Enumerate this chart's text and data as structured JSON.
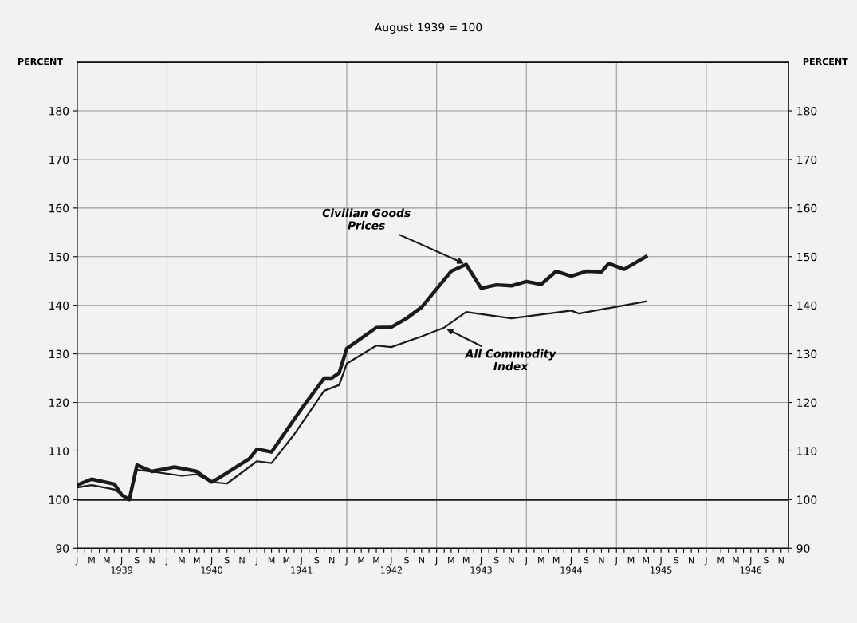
{
  "chart_data": {
    "type": "line",
    "subtitle": "August 1939 = 100",
    "ylabel": "PERCENT",
    "y2label": "PERCENT",
    "series": [
      {
        "color": "#1a1a1a",
        "x": [
          "1939-01",
          "1939-03",
          "1939-06",
          "1939-07",
          "1939-08",
          "1939-09",
          "1939-11",
          "1940-02",
          "1940-05",
          "1940-07",
          "1940-08",
          "1940-12",
          "1941-01",
          "1941-03",
          "1941-07",
          "1941-10",
          "1941-11",
          "1941-12",
          "1942-01",
          "1942-05",
          "1942-07",
          "1942-09",
          "1942-11",
          "1943-03",
          "1943-05",
          "1943-07",
          "1943-09",
          "1943-11",
          "1944-01",
          "1944-03",
          "1944-05",
          "1944-07",
          "1944-09",
          "1944-11",
          "1944-12",
          "1945-02",
          "1945-05"
        ],
        "values": [
          103,
          104.2,
          103.2,
          101,
          100,
          107.1,
          105.8,
          106.7,
          105.8,
          103.6,
          104.5,
          108.4,
          110.4,
          109.8,
          118.7,
          125,
          125,
          126.1,
          131.1,
          135.4,
          135.5,
          137.3,
          139.6,
          147,
          148.4,
          143.5,
          144.2,
          144,
          144.9,
          144.3,
          147,
          146,
          147,
          146.9,
          148.6,
          147.4,
          150
        ]
      },
      {
        "color": "#1a1a1a",
        "x": [
          "1939-01",
          "1939-03",
          "1939-06",
          "1939-08",
          "1939-09",
          "1939-11",
          "1940-03",
          "1940-05",
          "1940-07",
          "1940-09",
          "1941-01",
          "1941-03",
          "1941-06",
          "1941-10",
          "1941-12",
          "1942-01",
          "1942-05",
          "1942-07",
          "1942-11",
          "1943-02",
          "1943-05",
          "1943-11",
          "1944-07",
          "1944-08",
          "1945-05"
        ],
        "values": [
          102.5,
          103,
          102.1,
          100,
          106.1,
          105.8,
          104.9,
          105.2,
          103.6,
          103.3,
          107.9,
          107.5,
          113.4,
          122.4,
          123.6,
          128,
          131.7,
          131.4,
          133.6,
          135.4,
          138.6,
          137.3,
          138.9,
          138.3,
          140.8
        ]
      }
    ],
    "xlim": [
      "1939-01",
      "1946-12"
    ],
    "xticks": [
      {
        "value": "1939-01",
        "label": "J"
      },
      {
        "value": "1939-02",
        "label": null
      },
      {
        "value": "1939-03",
        "label": "M"
      },
      {
        "value": "1939-04",
        "label": null
      },
      {
        "value": "1939-05",
        "label": "M"
      },
      {
        "value": "1939-06",
        "label": null
      },
      {
        "value": "1939-07",
        "label": "J\n1939"
      },
      {
        "value": "1939-08",
        "label": null
      },
      {
        "value": "1939-09",
        "label": "S"
      },
      {
        "value": "1939-10",
        "label": null
      },
      {
        "value": "1939-11",
        "label": "N"
      },
      {
        "value": "1939-12",
        "label": null
      },
      {
        "value": "1940-01",
        "label": "J"
      },
      {
        "value": "1940-02",
        "label": null
      },
      {
        "value": "1940-03",
        "label": "M"
      },
      {
        "value": "1940-04",
        "label": null
      },
      {
        "value": "1940-05",
        "label": "M"
      },
      {
        "value": "1940-06",
        "label": null
      },
      {
        "value": "1940-07",
        "label": "J\n1940"
      },
      {
        "value": "1940-08",
        "label": null
      },
      {
        "value": "1940-09",
        "label": "S"
      },
      {
        "value": "1940-10",
        "label": null
      },
      {
        "value": "1940-11",
        "label": "N"
      },
      {
        "value": "1940-12",
        "label": null
      },
      {
        "value": "1941-01",
        "label": "J"
      },
      {
        "value": "1941-02",
        "label": null
      },
      {
        "value": "1941-03",
        "label": "M"
      },
      {
        "value": "1941-04",
        "label": null
      },
      {
        "value": "1941-05",
        "label": "M"
      },
      {
        "value": "1941-06",
        "label": null
      },
      {
        "value": "1941-07",
        "label": "J\n1941"
      },
      {
        "value": "1941-08",
        "label": null
      },
      {
        "value": "1941-09",
        "label": "S"
      },
      {
        "value": "1941-10",
        "label": null
      },
      {
        "value": "1941-11",
        "label": "N"
      },
      {
        "value": "1941-12",
        "label": null
      },
      {
        "value": "1942-01",
        "label": "J"
      },
      {
        "value": "1942-02",
        "label": null
      },
      {
        "value": "1942-03",
        "label": "M"
      },
      {
        "value": "1942-04",
        "label": null
      },
      {
        "value": "1942-05",
        "label": "M"
      },
      {
        "value": "1942-06",
        "label": null
      },
      {
        "value": "1942-07",
        "label": "J\n1942"
      },
      {
        "value": "1942-08",
        "label": null
      },
      {
        "value": "1942-09",
        "label": "S"
      },
      {
        "value": "1942-10",
        "label": null
      },
      {
        "value": "1942-11",
        "label": "N"
      },
      {
        "value": "1942-12",
        "label": null
      },
      {
        "value": "1943-01",
        "label": "J"
      },
      {
        "value": "1943-02",
        "label": null
      },
      {
        "value": "1943-03",
        "label": "M"
      },
      {
        "value": "1943-04",
        "label": null
      },
      {
        "value": "1943-05",
        "label": "M"
      },
      {
        "value": "1943-06",
        "label": null
      },
      {
        "value": "1943-07",
        "label": "J\n1943"
      },
      {
        "value": "1943-08",
        "label": null
      },
      {
        "value": "1943-09",
        "label": "S"
      },
      {
        "value": "1943-10",
        "label": null
      },
      {
        "value": "1943-11",
        "label": "N"
      },
      {
        "value": "1943-12",
        "label": null
      },
      {
        "value": "1944-01",
        "label": "J"
      },
      {
        "value": "1944-02",
        "label": null
      },
      {
        "value": "1944-03",
        "label": "M"
      },
      {
        "value": "1944-04",
        "label": null
      },
      {
        "value": "1944-05",
        "label": "M"
      },
      {
        "value": "1944-06",
        "label": null
      },
      {
        "value": "1944-07",
        "label": "J\n1944"
      },
      {
        "value": "1944-08",
        "label": null
      },
      {
        "value": "1944-09",
        "label": "S"
      },
      {
        "value": "1944-10",
        "label": null
      },
      {
        "value": "1944-11",
        "label": "N"
      },
      {
        "value": "1944-12",
        "label": null
      },
      {
        "value": "1945-01",
        "label": "J"
      },
      {
        "value": "1945-02",
        "label": null
      },
      {
        "value": "1945-03",
        "label": "M"
      },
      {
        "value": "1945-04",
        "label": null
      },
      {
        "value": "1945-05",
        "label": "M"
      },
      {
        "value": "1945-06",
        "label": null
      },
      {
        "value": "1945-07",
        "label": "J\n1945"
      },
      {
        "value": "1945-08",
        "label": null
      },
      {
        "value": "1945-09",
        "label": "S"
      },
      {
        "value": "1945-10",
        "label": null
      },
      {
        "value": "1945-11",
        "label": "N"
      },
      {
        "value": "1945-12",
        "label": null
      },
      {
        "value": "1946-01",
        "label": "J"
      },
      {
        "value": "1946-02",
        "label": null
      },
      {
        "value": "1946-03",
        "label": "M"
      },
      {
        "value": "1946-04",
        "label": null
      },
      {
        "value": "1946-05",
        "label": "M"
      },
      {
        "value": "1946-06",
        "label": null
      },
      {
        "value": "1946-07",
        "label": "J\n1946"
      },
      {
        "value": "1946-08",
        "label": null
      },
      {
        "value": "1946-09",
        "label": "S"
      },
      {
        "value": "1946-10",
        "label": null
      },
      {
        "value": "1946-11",
        "label": "N"
      },
      {
        "value": "1946-12",
        "label": null
      }
    ],
    "ylim": [
      90,
      190
    ],
    "yticks": [
      90,
      100,
      110,
      120,
      130,
      140,
      150,
      160,
      170,
      180
    ],
    "y2lim": [
      90,
      190
    ],
    "y2ticks": [
      90,
      100,
      110,
      120,
      130,
      140,
      150,
      160,
      170,
      180
    ],
    "ref_lines": [
      {
        "axis": "y",
        "value": 100,
        "color": "#1a1a1a"
      }
    ],
    "grid": true,
    "legend": false,
    "marker": "none",
    "line_style": "solid",
    "annotations": [
      {
        "text": "Civilian Goods\nPrices",
        "x": "1943-05",
        "y": 148.4
      },
      {
        "text": "All Commodity\nIndex",
        "x": "1943-02",
        "y": 135.4
      }
    ]
  }
}
